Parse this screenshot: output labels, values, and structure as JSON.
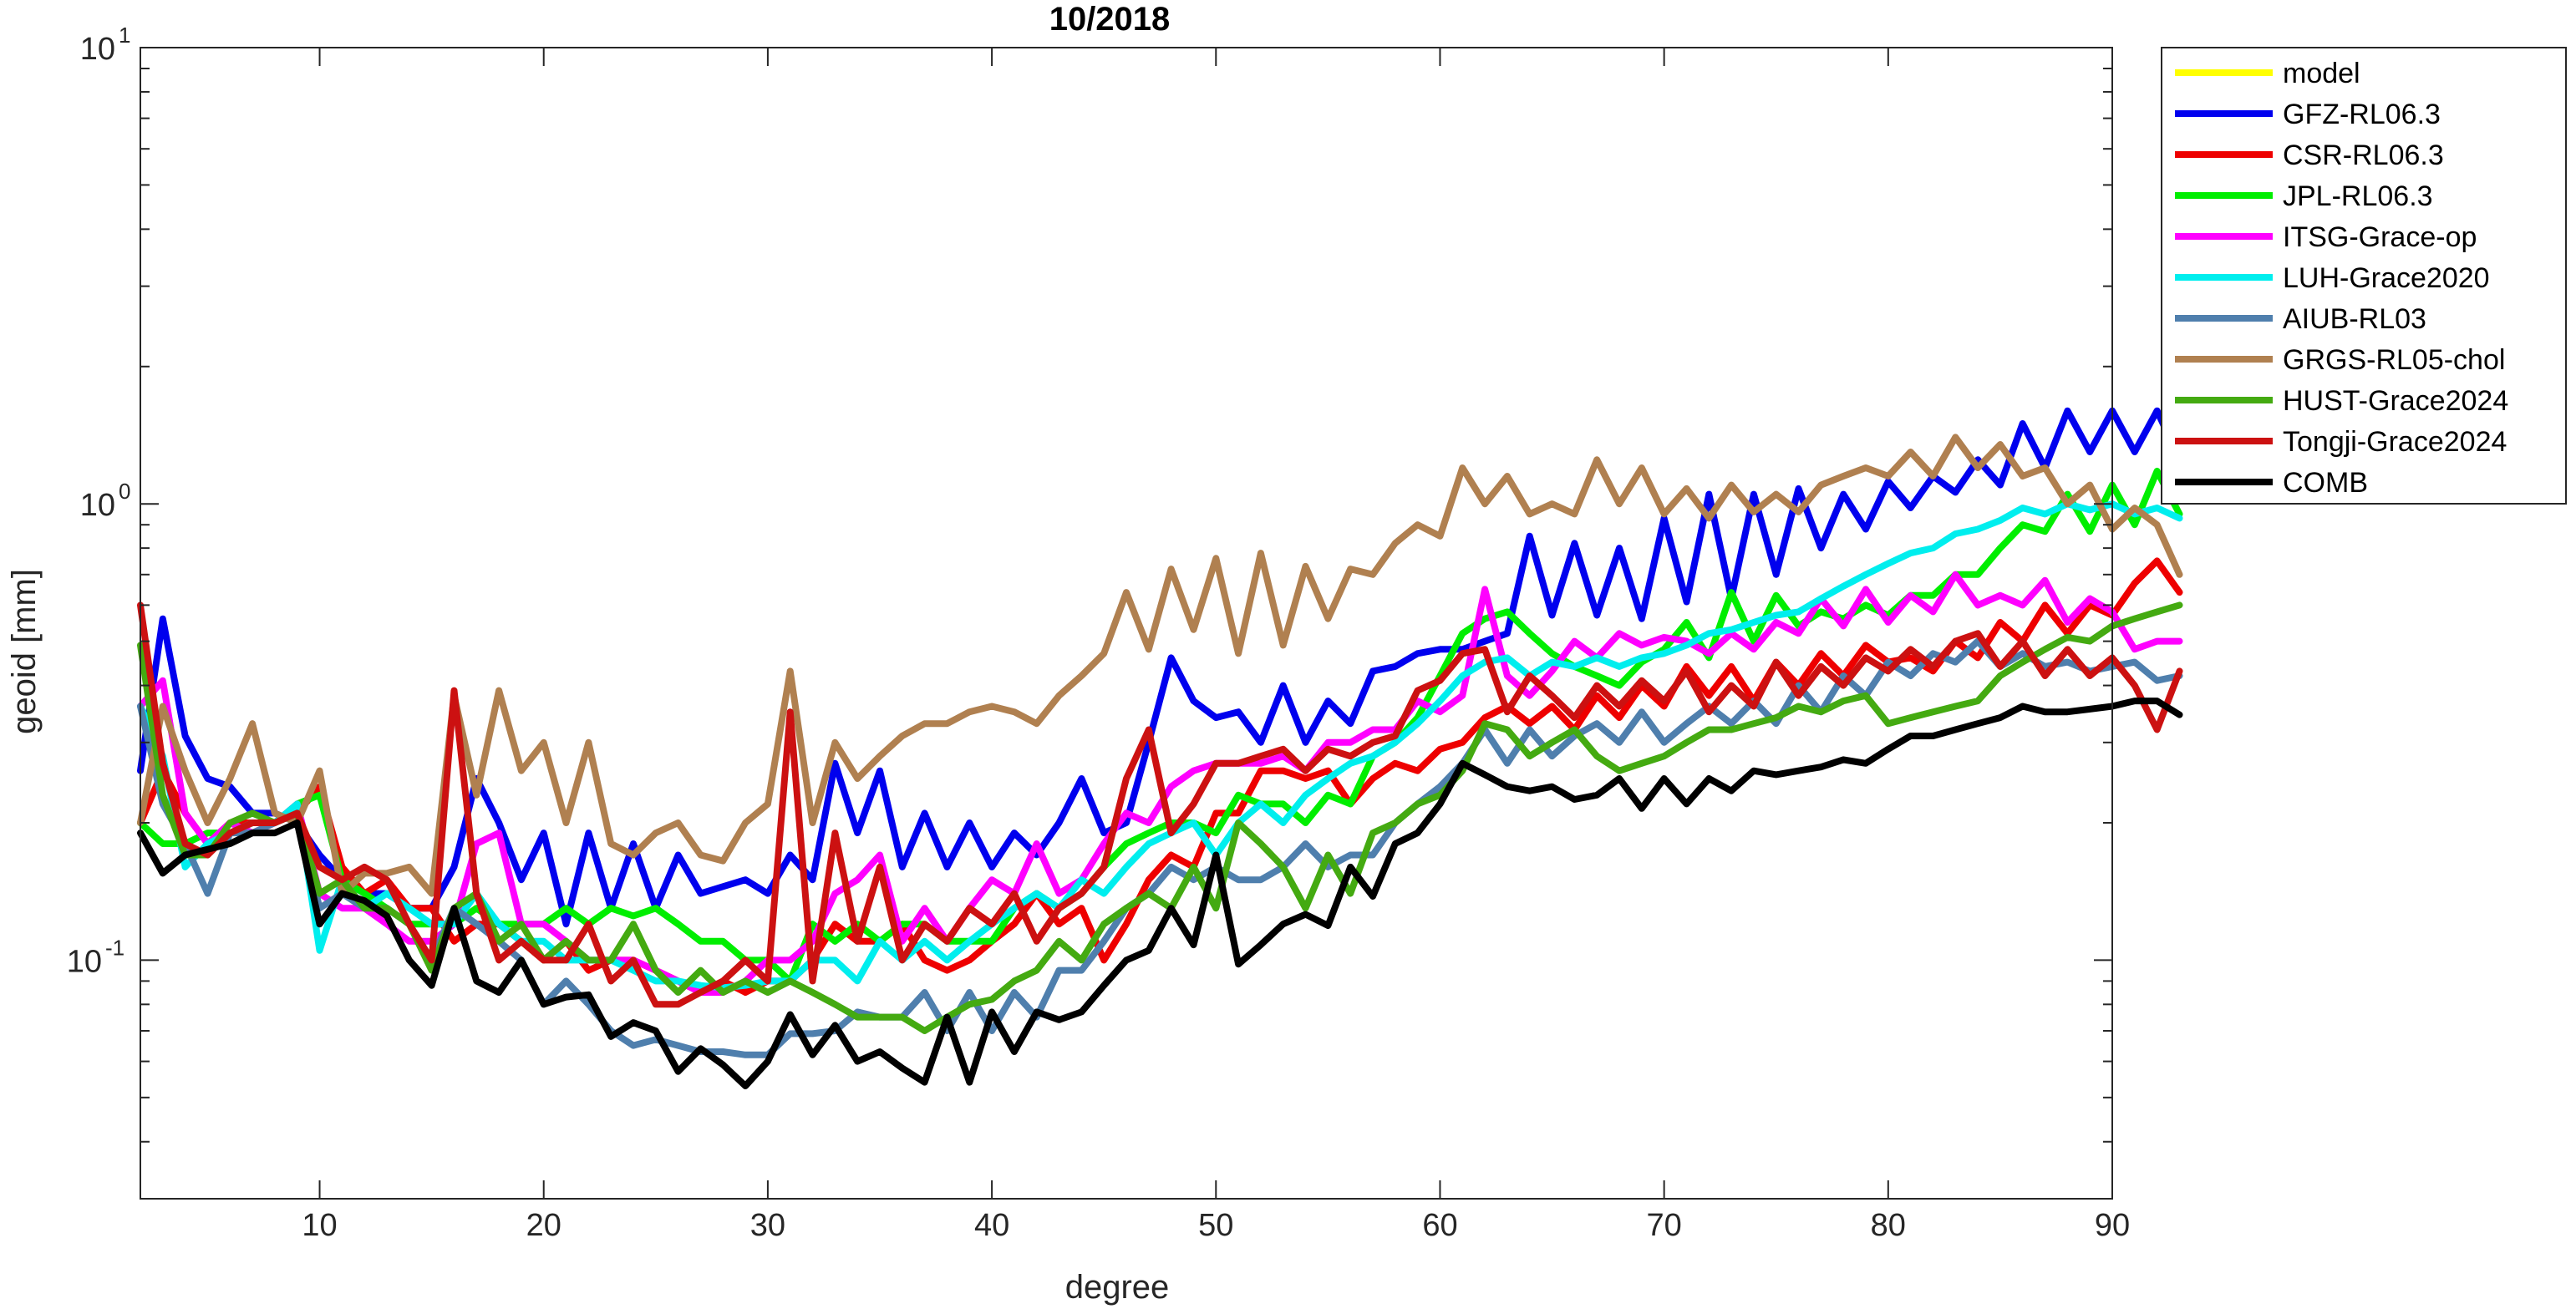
{
  "chart_data": {
    "type": "line",
    "title": "10/2018",
    "xlabel": "degree",
    "ylabel": "geoid [mm]",
    "xlim": [
      2,
      90
    ],
    "ylim": [
      0.03,
      10
    ],
    "yscale": "log",
    "grid": false,
    "legend_position": "top-right outside",
    "x_ticks": [
      10,
      20,
      30,
      40,
      50,
      60,
      70,
      80,
      90
    ],
    "x_tick_labels": [
      "10",
      "20",
      "30",
      "40",
      "50",
      "60",
      "70",
      "80",
      "90"
    ],
    "y_ticks": [
      {
        "value": 10,
        "base": "10",
        "exp": "1"
      },
      {
        "value": 1,
        "base": "10",
        "exp": "0"
      },
      {
        "value": 0.1,
        "base": "10",
        "exp": "-1"
      }
    ],
    "series": [
      {
        "name": "model",
        "color": "#ffff00",
        "values": []
      },
      {
        "name": "GFZ-RL06.3",
        "color": "#0000ee",
        "start_degree": 2,
        "values": [
          0.26,
          0.56,
          0.31,
          0.25,
          0.24,
          0.21,
          0.21,
          0.2,
          0.17,
          0.15,
          0.14,
          0.14,
          0.13,
          0.13,
          0.16,
          0.25,
          0.2,
          0.15,
          0.19,
          0.12,
          0.19,
          0.13,
          0.18,
          0.13,
          0.17,
          0.14,
          0.145,
          0.15,
          0.14,
          0.17,
          0.15,
          0.27,
          0.19,
          0.26,
          0.16,
          0.21,
          0.16,
          0.2,
          0.16,
          0.19,
          0.17,
          0.2,
          0.25,
          0.19,
          0.2,
          0.3,
          0.46,
          0.37,
          0.34,
          0.35,
          0.3,
          0.4,
          0.3,
          0.37,
          0.33,
          0.43,
          0.44,
          0.47,
          0.48,
          0.48,
          0.5,
          0.52,
          0.85,
          0.57,
          0.82,
          0.57,
          0.8,
          0.56,
          0.93,
          0.61,
          1.05,
          0.62,
          1.05,
          0.7,
          1.08,
          0.8,
          1.05,
          0.88,
          1.12,
          0.98,
          1.15,
          1.06,
          1.25,
          1.1,
          1.5,
          1.2,
          1.6,
          1.3,
          1.6,
          1.3,
          1.6,
          1.25
        ]
      },
      {
        "name": "CSR-RL06.3",
        "color": "#ee0000",
        "start_degree": 2,
        "values": [
          0.2,
          0.26,
          0.21,
          0.18,
          0.2,
          0.2,
          0.2,
          0.21,
          0.24,
          0.16,
          0.14,
          0.15,
          0.13,
          0.13,
          0.11,
          0.12,
          0.12,
          0.11,
          0.1,
          0.11,
          0.095,
          0.1,
          0.1,
          0.095,
          0.09,
          0.085,
          0.09,
          0.085,
          0.09,
          0.09,
          0.1,
          0.12,
          0.11,
          0.11,
          0.12,
          0.1,
          0.095,
          0.1,
          0.11,
          0.12,
          0.14,
          0.12,
          0.13,
          0.1,
          0.12,
          0.15,
          0.17,
          0.16,
          0.21,
          0.21,
          0.26,
          0.26,
          0.25,
          0.26,
          0.22,
          0.25,
          0.27,
          0.26,
          0.29,
          0.3,
          0.34,
          0.36,
          0.33,
          0.36,
          0.32,
          0.38,
          0.34,
          0.4,
          0.36,
          0.44,
          0.38,
          0.44,
          0.37,
          0.45,
          0.4,
          0.47,
          0.42,
          0.49,
          0.45,
          0.46,
          0.43,
          0.5,
          0.46,
          0.55,
          0.5,
          0.6,
          0.52,
          0.6,
          0.57,
          0.67,
          0.75,
          0.64
        ]
      },
      {
        "name": "JPL-RL06.3",
        "color": "#00ee00",
        "start_degree": 2,
        "values": [
          0.2,
          0.18,
          0.18,
          0.19,
          0.19,
          0.2,
          0.2,
          0.22,
          0.23,
          0.15,
          0.14,
          0.13,
          0.12,
          0.12,
          0.12,
          0.13,
          0.12,
          0.12,
          0.12,
          0.13,
          0.12,
          0.13,
          0.125,
          0.13,
          0.12,
          0.11,
          0.11,
          0.1,
          0.1,
          0.09,
          0.12,
          0.11,
          0.12,
          0.11,
          0.12,
          0.12,
          0.11,
          0.11,
          0.11,
          0.13,
          0.14,
          0.13,
          0.14,
          0.16,
          0.18,
          0.19,
          0.2,
          0.2,
          0.19,
          0.23,
          0.22,
          0.22,
          0.2,
          0.23,
          0.22,
          0.28,
          0.3,
          0.34,
          0.42,
          0.52,
          0.56,
          0.58,
          0.52,
          0.47,
          0.44,
          0.42,
          0.4,
          0.45,
          0.48,
          0.55,
          0.46,
          0.64,
          0.5,
          0.63,
          0.54,
          0.58,
          0.56,
          0.6,
          0.57,
          0.63,
          0.63,
          0.7,
          0.7,
          0.8,
          0.9,
          0.87,
          1.05,
          0.87,
          1.1,
          0.9,
          1.18,
          0.95
        ]
      },
      {
        "name": "ITSG-Grace-op",
        "color": "#ff00ff",
        "start_degree": 2,
        "values": [
          0.36,
          0.41,
          0.21,
          0.18,
          0.2,
          0.19,
          0.2,
          0.22,
          0.14,
          0.13,
          0.13,
          0.12,
          0.11,
          0.11,
          0.12,
          0.18,
          0.19,
          0.12,
          0.12,
          0.11,
          0.1,
          0.1,
          0.1,
          0.095,
          0.09,
          0.085,
          0.085,
          0.09,
          0.1,
          0.1,
          0.11,
          0.14,
          0.15,
          0.17,
          0.11,
          0.13,
          0.11,
          0.13,
          0.15,
          0.14,
          0.18,
          0.14,
          0.15,
          0.18,
          0.21,
          0.2,
          0.24,
          0.26,
          0.27,
          0.27,
          0.27,
          0.28,
          0.26,
          0.3,
          0.3,
          0.32,
          0.32,
          0.37,
          0.35,
          0.38,
          0.65,
          0.42,
          0.38,
          0.43,
          0.5,
          0.46,
          0.52,
          0.49,
          0.51,
          0.5,
          0.47,
          0.52,
          0.48,
          0.55,
          0.52,
          0.62,
          0.54,
          0.65,
          0.55,
          0.63,
          0.58,
          0.7,
          0.6,
          0.63,
          0.6,
          0.68,
          0.55,
          0.62,
          0.58,
          0.48,
          0.5,
          0.5
        ]
      },
      {
        "name": "LUH-Grace2020",
        "color": "#00eeee",
        "start_degree": 2,
        "values": [
          0.36,
          0.28,
          0.16,
          0.18,
          0.19,
          0.2,
          0.2,
          0.22,
          0.105,
          0.15,
          0.13,
          0.14,
          0.13,
          0.12,
          0.12,
          0.14,
          0.12,
          0.11,
          0.11,
          0.1,
          0.1,
          0.1,
          0.095,
          0.09,
          0.09,
          0.088,
          0.087,
          0.088,
          0.09,
          0.09,
          0.1,
          0.1,
          0.09,
          0.11,
          0.1,
          0.11,
          0.1,
          0.11,
          0.12,
          0.13,
          0.14,
          0.13,
          0.15,
          0.14,
          0.16,
          0.18,
          0.19,
          0.2,
          0.17,
          0.2,
          0.22,
          0.2,
          0.23,
          0.25,
          0.27,
          0.28,
          0.3,
          0.33,
          0.37,
          0.42,
          0.45,
          0.46,
          0.42,
          0.45,
          0.44,
          0.46,
          0.44,
          0.46,
          0.47,
          0.49,
          0.52,
          0.53,
          0.55,
          0.57,
          0.58,
          0.62,
          0.66,
          0.7,
          0.74,
          0.78,
          0.8,
          0.86,
          0.88,
          0.92,
          0.98,
          0.95,
          1.0,
          0.97,
          1.0,
          0.95,
          0.98,
          0.93
        ]
      },
      {
        "name": "AIUB-RL03",
        "color": "#4f7fad",
        "start_degree": 2,
        "values": [
          0.36,
          0.22,
          0.18,
          0.14,
          0.19,
          0.19,
          0.2,
          0.21,
          0.13,
          0.14,
          0.13,
          0.13,
          0.12,
          0.1,
          0.13,
          0.12,
          0.11,
          0.1,
          0.08,
          0.09,
          0.08,
          0.07,
          0.065,
          0.067,
          0.065,
          0.063,
          0.063,
          0.062,
          0.062,
          0.069,
          0.069,
          0.07,
          0.077,
          0.075,
          0.075,
          0.085,
          0.07,
          0.085,
          0.07,
          0.085,
          0.075,
          0.095,
          0.095,
          0.11,
          0.13,
          0.14,
          0.16,
          0.15,
          0.16,
          0.15,
          0.15,
          0.16,
          0.18,
          0.16,
          0.17,
          0.17,
          0.2,
          0.22,
          0.24,
          0.27,
          0.32,
          0.27,
          0.32,
          0.28,
          0.31,
          0.33,
          0.3,
          0.35,
          0.3,
          0.33,
          0.36,
          0.33,
          0.37,
          0.33,
          0.4,
          0.35,
          0.42,
          0.38,
          0.45,
          0.42,
          0.47,
          0.45,
          0.5,
          0.44,
          0.47,
          0.44,
          0.45,
          0.43,
          0.44,
          0.45,
          0.41,
          0.42
        ]
      },
      {
        "name": "GRGS-RL05-chol",
        "color": "#b08050",
        "start_degree": 2,
        "values": [
          0.2,
          0.36,
          0.26,
          0.2,
          0.25,
          0.33,
          0.21,
          0.2,
          0.26,
          0.14,
          0.155,
          0.155,
          0.16,
          0.14,
          0.38,
          0.23,
          0.39,
          0.26,
          0.3,
          0.2,
          0.3,
          0.18,
          0.17,
          0.19,
          0.2,
          0.17,
          0.165,
          0.2,
          0.22,
          0.43,
          0.2,
          0.3,
          0.25,
          0.28,
          0.31,
          0.33,
          0.33,
          0.35,
          0.36,
          0.35,
          0.33,
          0.38,
          0.42,
          0.47,
          0.64,
          0.48,
          0.72,
          0.53,
          0.76,
          0.47,
          0.78,
          0.49,
          0.73,
          0.56,
          0.72,
          0.7,
          0.82,
          0.9,
          0.85,
          1.2,
          1.0,
          1.15,
          0.95,
          1.0,
          0.95,
          1.25,
          1.0,
          1.2,
          0.95,
          1.08,
          0.93,
          1.1,
          0.96,
          1.05,
          0.96,
          1.1,
          1.15,
          1.2,
          1.15,
          1.3,
          1.15,
          1.4,
          1.2,
          1.35,
          1.15,
          1.2,
          1.0,
          1.1,
          0.88,
          0.98,
          0.9,
          0.7
        ]
      },
      {
        "name": "HUST-Grace2024",
        "color": "#44aa11",
        "start_degree": 2,
        "values": [
          0.49,
          0.23,
          0.17,
          0.17,
          0.2,
          0.21,
          0.2,
          0.21,
          0.14,
          0.15,
          0.13,
          0.13,
          0.12,
          0.095,
          0.13,
          0.14,
          0.11,
          0.12,
          0.1,
          0.11,
          0.1,
          0.1,
          0.12,
          0.095,
          0.085,
          0.095,
          0.085,
          0.09,
          0.085,
          0.09,
          0.085,
          0.08,
          0.075,
          0.075,
          0.075,
          0.07,
          0.075,
          0.08,
          0.082,
          0.09,
          0.095,
          0.11,
          0.1,
          0.12,
          0.13,
          0.14,
          0.13,
          0.16,
          0.13,
          0.2,
          0.18,
          0.16,
          0.13,
          0.17,
          0.14,
          0.19,
          0.2,
          0.22,
          0.23,
          0.26,
          0.33,
          0.32,
          0.28,
          0.3,
          0.32,
          0.28,
          0.26,
          0.27,
          0.28,
          0.3,
          0.32,
          0.32,
          0.33,
          0.34,
          0.36,
          0.35,
          0.37,
          0.38,
          0.33,
          0.34,
          0.35,
          0.36,
          0.37,
          0.42,
          0.45,
          0.48,
          0.51,
          0.5,
          0.54,
          0.56,
          0.58,
          0.6
        ]
      },
      {
        "name": "Tongji-Grace2024",
        "color": "#cc1111",
        "start_degree": 2,
        "values": [
          0.6,
          0.27,
          0.18,
          0.17,
          0.19,
          0.2,
          0.2,
          0.21,
          0.16,
          0.15,
          0.16,
          0.15,
          0.12,
          0.1,
          0.39,
          0.14,
          0.1,
          0.11,
          0.1,
          0.1,
          0.12,
          0.09,
          0.1,
          0.08,
          0.08,
          0.085,
          0.09,
          0.1,
          0.09,
          0.35,
          0.09,
          0.19,
          0.11,
          0.16,
          0.1,
          0.12,
          0.11,
          0.13,
          0.12,
          0.14,
          0.11,
          0.13,
          0.14,
          0.16,
          0.25,
          0.32,
          0.19,
          0.22,
          0.27,
          0.27,
          0.28,
          0.29,
          0.26,
          0.29,
          0.28,
          0.3,
          0.31,
          0.39,
          0.41,
          0.47,
          0.48,
          0.35,
          0.42,
          0.38,
          0.34,
          0.4,
          0.36,
          0.41,
          0.37,
          0.43,
          0.35,
          0.4,
          0.36,
          0.45,
          0.38,
          0.44,
          0.4,
          0.46,
          0.43,
          0.48,
          0.44,
          0.5,
          0.52,
          0.44,
          0.5,
          0.42,
          0.48,
          0.42,
          0.46,
          0.4,
          0.32,
          0.43
        ]
      },
      {
        "name": "COMB",
        "color": "#000000",
        "start_degree": 2,
        "values": [
          0.19,
          0.155,
          0.17,
          0.175,
          0.18,
          0.19,
          0.19,
          0.2,
          0.12,
          0.14,
          0.135,
          0.125,
          0.1,
          0.088,
          0.13,
          0.09,
          0.085,
          0.1,
          0.08,
          0.083,
          0.084,
          0.068,
          0.073,
          0.07,
          0.057,
          0.064,
          0.059,
          0.053,
          0.06,
          0.076,
          0.062,
          0.072,
          0.06,
          0.063,
          0.058,
          0.054,
          0.075,
          0.054,
          0.077,
          0.063,
          0.077,
          0.074,
          0.077,
          0.088,
          0.1,
          0.105,
          0.13,
          0.108,
          0.17,
          0.098,
          0.108,
          0.12,
          0.126,
          0.119,
          0.16,
          0.138,
          0.18,
          0.19,
          0.22,
          0.27,
          0.255,
          0.24,
          0.235,
          0.24,
          0.225,
          0.23,
          0.25,
          0.215,
          0.25,
          0.22,
          0.25,
          0.235,
          0.26,
          0.255,
          0.26,
          0.265,
          0.275,
          0.27,
          0.29,
          0.31,
          0.31,
          0.32,
          0.33,
          0.34,
          0.36,
          0.35,
          0.35,
          0.355,
          0.36,
          0.37,
          0.37,
          0.345
        ]
      }
    ]
  }
}
